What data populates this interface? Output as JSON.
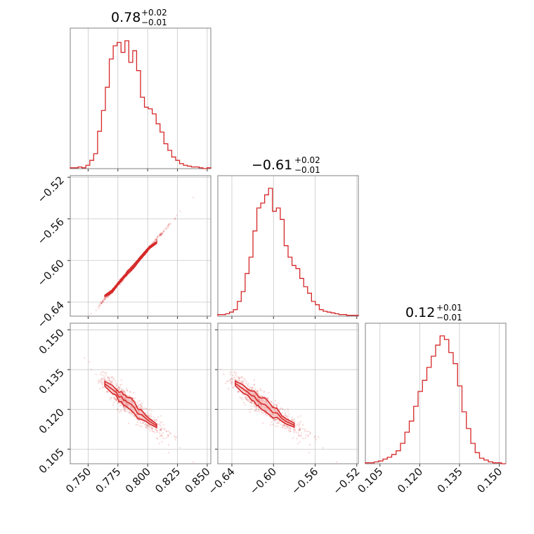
{
  "chart_data": {
    "type": "corner",
    "color": "#d62728",
    "parameters": [
      {
        "title_value": "0.78",
        "title_plus": "+0.02",
        "title_minus": "−0.01",
        "range": [
          0.735,
          0.853
        ],
        "ticks": [
          0.75,
          0.775,
          0.8,
          0.825,
          0.85
        ],
        "tick_labels": [
          "0.750",
          "0.775",
          "0.800",
          "0.825",
          "0.850"
        ],
        "hist_counts": [
          1,
          1,
          2,
          1,
          4,
          10,
          18,
          45,
          70,
          98,
          132,
          148,
          152,
          140,
          154,
          128,
          142,
          118,
          86,
          74,
          72,
          66,
          54,
          44,
          30,
          22,
          14,
          10,
          6,
          4,
          3,
          2,
          2,
          1,
          0,
          1
        ]
      },
      {
        "title_value": "−0.61",
        "title_plus": "+0.02",
        "title_minus": "−0.01",
        "range": [
          -0.6535,
          -0.5185
        ],
        "ticks": [
          -0.64,
          -0.6,
          -0.56,
          -0.52
        ],
        "tick_labels": [
          "−0.64",
          "−0.60",
          "−0.56",
          "−0.52"
        ],
        "y_tick_labels": [
          "−0.64",
          "−0.60",
          "−0.56",
          "−0.52"
        ],
        "hist_counts": [
          2,
          2,
          3,
          5,
          8,
          18,
          30,
          52,
          72,
          104,
          132,
          138,
          148,
          156,
          128,
          132,
          118,
          86,
          72,
          62,
          58,
          46,
          36,
          28,
          18,
          14,
          8,
          6,
          5,
          4,
          3,
          2,
          2,
          1,
          1,
          1
        ]
      },
      {
        "title_value": "0.12",
        "title_plus": "+0.01",
        "title_minus": "−0.01",
        "range": [
          0.0995,
          0.1525
        ],
        "ticks": [
          0.105,
          0.12,
          0.135,
          0.15
        ],
        "tick_labels": [
          "0.105",
          "0.120",
          "0.135",
          "0.150"
        ],
        "y_tick_labels": [
          "0.105",
          "0.120",
          "0.135",
          "0.150"
        ],
        "hist_counts": [
          1,
          1,
          2,
          3,
          5,
          7,
          10,
          14,
          22,
          34,
          46,
          62,
          78,
          90,
          104,
          116,
          128,
          138,
          134,
          120,
          108,
          84,
          56,
          38,
          22,
          12,
          6,
          4,
          2,
          1,
          1,
          0
        ]
      }
    ],
    "correlations": {
      "p0_p1": 0.995,
      "p0_p2": -0.93,
      "p1_p2": -0.93
    },
    "grid": true,
    "title_format": "median with upper and lower uncertainty"
  }
}
